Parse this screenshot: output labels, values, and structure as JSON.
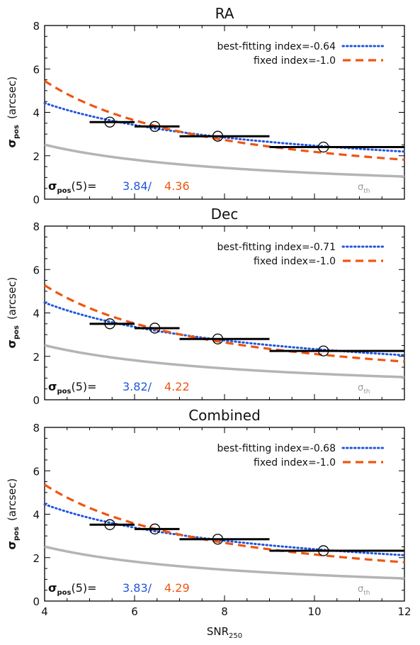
{
  "chart_data": [
    {
      "type": "line",
      "title": "RA",
      "xlim": [
        4,
        12
      ],
      "ylim": [
        0,
        8
      ],
      "xticks": [
        "4",
        "6",
        "8",
        "10",
        "12"
      ],
      "yticks": [
        "0",
        "2",
        "4",
        "6",
        "8"
      ],
      "ylabel_main": "σ",
      "ylabel_sub": "pos",
      "ylabel_unit": "(arcsec)",
      "xlabel_main": "",
      "xlabel_sub": "",
      "legend_position": "top-right",
      "series": [
        {
          "name": "best-fitting index=-0.64",
          "style": "dotted",
          "color": "#2255dd",
          "kind": "power",
          "A": 3.84,
          "index": -0.64
        },
        {
          "name": "fixed index=-1.0",
          "style": "dashed",
          "color": "#ee5511",
          "kind": "power",
          "A": 4.36,
          "index": -1.0
        },
        {
          "name": "σth",
          "style": "solid",
          "color": "#b4b4b4",
          "kind": "power",
          "A": 2.1,
          "index": -0.8
        }
      ],
      "th_label_main": "σ",
      "th_label_sub": "th",
      "bins": [
        {
          "x0": 5,
          "x1": 6,
          "y": 3.55,
          "mx": 5.45,
          "my": 3.55
        },
        {
          "x0": 6,
          "x1": 7,
          "y": 3.35,
          "mx": 6.45,
          "my": 3.35
        },
        {
          "x0": 7,
          "x1": 9,
          "y": 2.9,
          "mx": 7.85,
          "my": 2.9
        },
        {
          "x0": 9,
          "x1": 12,
          "y": 2.4,
          "mx": 10.2,
          "my": 2.4
        }
      ],
      "annotation": {
        "label_main": "σ",
        "label_sub": "pos",
        "label_tail": "(5)=",
        "best": "3.84/",
        "fixed": "4.36"
      }
    },
    {
      "type": "line",
      "title": "Dec",
      "xlim": [
        4,
        12
      ],
      "ylim": [
        0,
        8
      ],
      "xticks": [
        "4",
        "6",
        "8",
        "10",
        "12"
      ],
      "yticks": [
        "0",
        "2",
        "4",
        "6",
        "8"
      ],
      "ylabel_main": "σ",
      "ylabel_sub": "pos",
      "ylabel_unit": "(arcsec)",
      "xlabel_main": "",
      "xlabel_sub": "",
      "legend_position": "top-right",
      "series": [
        {
          "name": "best-fitting index=-0.71",
          "style": "dotted",
          "color": "#2255dd",
          "kind": "power",
          "A": 3.82,
          "index": -0.71
        },
        {
          "name": "fixed index=-1.0",
          "style": "dashed",
          "color": "#ee5511",
          "kind": "power",
          "A": 4.22,
          "index": -1.0
        },
        {
          "name": "σth",
          "style": "solid",
          "color": "#b4b4b4",
          "kind": "power",
          "A": 2.1,
          "index": -0.8
        }
      ],
      "th_label_main": "σ",
      "th_label_sub": "th",
      "bins": [
        {
          "x0": 5,
          "x1": 6,
          "y": 3.5,
          "mx": 5.45,
          "my": 3.5
        },
        {
          "x0": 6,
          "x1": 7,
          "y": 3.3,
          "mx": 6.45,
          "my": 3.3
        },
        {
          "x0": 7,
          "x1": 9,
          "y": 2.8,
          "mx": 7.85,
          "my": 2.8
        },
        {
          "x0": 9,
          "x1": 12,
          "y": 2.25,
          "mx": 10.2,
          "my": 2.25
        }
      ],
      "annotation": {
        "label_main": "σ",
        "label_sub": "pos",
        "label_tail": "(5)=",
        "best": "3.82/",
        "fixed": "4.22"
      }
    },
    {
      "type": "line",
      "title": "Combined",
      "xlim": [
        4,
        12
      ],
      "ylim": [
        0,
        8
      ],
      "xticks": [
        "4",
        "6",
        "8",
        "10",
        "12"
      ],
      "yticks": [
        "0",
        "2",
        "4",
        "6",
        "8"
      ],
      "ylabel_main": "σ",
      "ylabel_sub": "pos",
      "ylabel_unit": "(arcsec)",
      "xlabel_main": "SNR",
      "xlabel_sub": "250",
      "legend_position": "top-right",
      "series": [
        {
          "name": "best-fitting index=-0.68",
          "style": "dotted",
          "color": "#2255dd",
          "kind": "power",
          "A": 3.83,
          "index": -0.68
        },
        {
          "name": "fixed index=-1.0",
          "style": "dashed",
          "color": "#ee5511",
          "kind": "power",
          "A": 4.29,
          "index": -1.0
        },
        {
          "name": "σth",
          "style": "solid",
          "color": "#b4b4b4",
          "kind": "power",
          "A": 2.1,
          "index": -0.8
        }
      ],
      "th_label_main": "σ",
      "th_label_sub": "th",
      "bins": [
        {
          "x0": 5,
          "x1": 6,
          "y": 3.52,
          "mx": 5.45,
          "my": 3.52
        },
        {
          "x0": 6,
          "x1": 7,
          "y": 3.32,
          "mx": 6.45,
          "my": 3.32
        },
        {
          "x0": 7,
          "x1": 9,
          "y": 2.85,
          "mx": 7.85,
          "my": 2.85
        },
        {
          "x0": 9,
          "x1": 12,
          "y": 2.32,
          "mx": 10.2,
          "my": 2.32
        }
      ],
      "annotation": {
        "label_main": "σ",
        "label_sub": "pos",
        "label_tail": "(5)=",
        "best": "3.83/",
        "fixed": "4.29"
      }
    }
  ]
}
